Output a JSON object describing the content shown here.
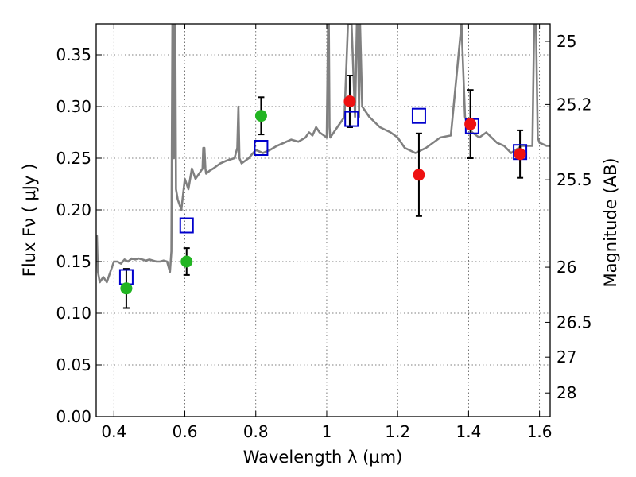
{
  "chart_data": {
    "type": "scatter",
    "title": "",
    "xlabel": "Wavelength  λ (μm)",
    "ylabel": "Flux  Fν  ( μJy )",
    "ylabel_right": "Magnitude (AB)",
    "xlim": [
      0.35,
      1.63
    ],
    "ylim": [
      0.0,
      0.38
    ],
    "grid": true,
    "x_ticks": [
      {
        "value": 0.4,
        "label": "0.4"
      },
      {
        "value": 0.6,
        "label": "0.6"
      },
      {
        "value": 0.8,
        "label": "0.8"
      },
      {
        "value": 1.0,
        "label": "1"
      },
      {
        "value": 1.2,
        "label": "1.2"
      },
      {
        "value": 1.4,
        "label": "1.4"
      },
      {
        "value": 1.6,
        "label": "1.6"
      }
    ],
    "y_ticks": [
      {
        "value": 0.0,
        "label": "0.00"
      },
      {
        "value": 0.05,
        "label": "0.05"
      },
      {
        "value": 0.1,
        "label": "0.10"
      },
      {
        "value": 0.15,
        "label": "0.15"
      },
      {
        "value": 0.2,
        "label": "0.20"
      },
      {
        "value": 0.25,
        "label": "0.25"
      },
      {
        "value": 0.3,
        "label": "0.30"
      },
      {
        "value": 0.35,
        "label": "0.35"
      }
    ],
    "right_ticks": [
      {
        "mag": 25,
        "label": "25"
      },
      {
        "mag": 25.2,
        "label": "25.2"
      },
      {
        "mag": 25.5,
        "label": "25.5"
      },
      {
        "mag": 26,
        "label": "26"
      },
      {
        "mag": 26.5,
        "label": "26.5"
      },
      {
        "mag": 27,
        "label": "27"
      },
      {
        "mag": 28,
        "label": "28"
      }
    ],
    "colors": {
      "spectrum": "#808080",
      "model_photometry": "#0000cc",
      "observed_optical": "#22b522",
      "observed_nir": "#ee1111",
      "error_bar": "#000000",
      "grid": "#555555"
    },
    "spectrum": {
      "x": [
        0.35,
        0.352,
        0.355,
        0.36,
        0.37,
        0.38,
        0.39,
        0.4,
        0.41,
        0.42,
        0.43,
        0.44,
        0.45,
        0.46,
        0.47,
        0.48,
        0.49,
        0.5,
        0.51,
        0.52,
        0.53,
        0.54,
        0.55,
        0.558,
        0.562,
        0.565,
        0.567,
        0.569,
        0.571,
        0.573,
        0.575,
        0.58,
        0.59,
        0.6,
        0.61,
        0.62,
        0.63,
        0.64,
        0.65,
        0.652,
        0.655,
        0.658,
        0.66,
        0.67,
        0.68,
        0.7,
        0.72,
        0.74,
        0.748,
        0.751,
        0.754,
        0.76,
        0.78,
        0.8,
        0.82,
        0.84,
        0.86,
        0.88,
        0.9,
        0.92,
        0.94,
        0.95,
        0.96,
        0.97,
        0.98,
        1.0,
        1.004,
        1.006,
        1.008,
        1.01,
        1.03,
        1.05,
        1.06,
        1.07,
        1.08,
        1.085,
        1.088,
        1.091,
        1.094,
        1.1,
        1.12,
        1.15,
        1.18,
        1.2,
        1.22,
        1.25,
        1.28,
        1.3,
        1.32,
        1.35,
        1.38,
        1.39,
        1.4,
        1.41,
        1.43,
        1.45,
        1.48,
        1.5,
        1.52,
        1.55,
        1.58,
        1.585,
        1.59,
        1.595,
        1.6,
        1.62,
        1.63
      ],
      "y": [
        0.16,
        0.175,
        0.14,
        0.13,
        0.135,
        0.13,
        0.14,
        0.15,
        0.15,
        0.148,
        0.152,
        0.15,
        0.153,
        0.152,
        0.153,
        0.152,
        0.151,
        0.152,
        0.151,
        0.15,
        0.15,
        0.151,
        0.15,
        0.14,
        0.16,
        0.38,
        0.38,
        0.25,
        0.38,
        0.38,
        0.22,
        0.21,
        0.2,
        0.23,
        0.22,
        0.24,
        0.23,
        0.235,
        0.24,
        0.26,
        0.26,
        0.24,
        0.235,
        0.238,
        0.24,
        0.245,
        0.248,
        0.25,
        0.26,
        0.3,
        0.25,
        0.245,
        0.25,
        0.258,
        0.255,
        0.258,
        0.262,
        0.265,
        0.268,
        0.266,
        0.27,
        0.275,
        0.272,
        0.28,
        0.275,
        0.27,
        0.38,
        0.38,
        0.28,
        0.27,
        0.28,
        0.29,
        0.38,
        0.38,
        0.29,
        0.38,
        0.38,
        0.29,
        0.38,
        0.3,
        0.29,
        0.28,
        0.275,
        0.27,
        0.26,
        0.255,
        0.26,
        0.265,
        0.27,
        0.272,
        0.38,
        0.29,
        0.28,
        0.275,
        0.27,
        0.275,
        0.265,
        0.262,
        0.255,
        0.262,
        0.262,
        0.38,
        0.38,
        0.27,
        0.265,
        0.262,
        0.262
      ]
    },
    "series": [
      {
        "role": "model_photometry",
        "marker": "open-square",
        "x": [
          0.435,
          0.605,
          0.815,
          1.07,
          1.26,
          1.41,
          1.545
        ],
        "y": [
          0.135,
          0.185,
          0.26,
          0.288,
          0.291,
          0.281,
          0.256
        ]
      },
      {
        "role": "observed_optical",
        "marker": "circle",
        "x": [
          0.435,
          0.605,
          0.815
        ],
        "y": [
          0.124,
          0.15,
          0.291
        ],
        "err": [
          0.019,
          0.013,
          0.018
        ]
      },
      {
        "role": "observed_nir",
        "marker": "circle",
        "x": [
          1.065,
          1.26,
          1.405,
          1.545
        ],
        "y": [
          0.305,
          0.234,
          0.283,
          0.254
        ],
        "err": [
          0.025,
          0.04,
          0.033,
          0.023
        ]
      }
    ]
  }
}
